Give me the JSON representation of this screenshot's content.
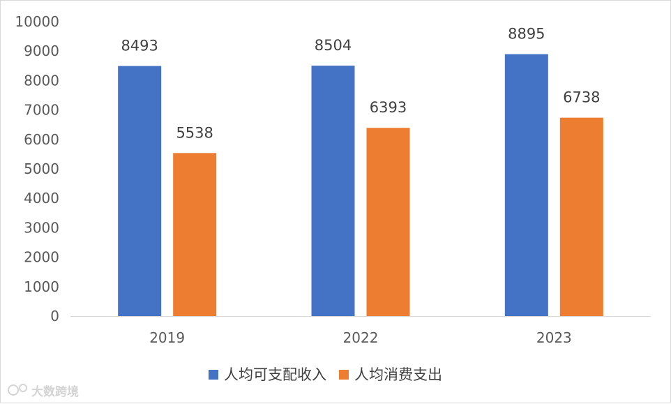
{
  "chart_data": {
    "type": "bar",
    "categories": [
      "2019",
      "2022",
      "2023"
    ],
    "series": [
      {
        "name": "人均可支配收入",
        "values": [
          8493,
          8504,
          8895
        ],
        "color": "#4472c4"
      },
      {
        "name": "人均消费支出",
        "values": [
          5538,
          6393,
          6738
        ],
        "color": "#ed7d31"
      }
    ],
    "ylim": [
      0,
      10000
    ],
    "yticks": [
      0,
      1000,
      2000,
      3000,
      4000,
      5000,
      6000,
      7000,
      8000,
      9000,
      10000
    ],
    "grid": false,
    "legend_position": "bottom",
    "data_labels": true
  },
  "watermark": {
    "text": "大数跨境",
    "icon": "brand-logo-icon"
  }
}
